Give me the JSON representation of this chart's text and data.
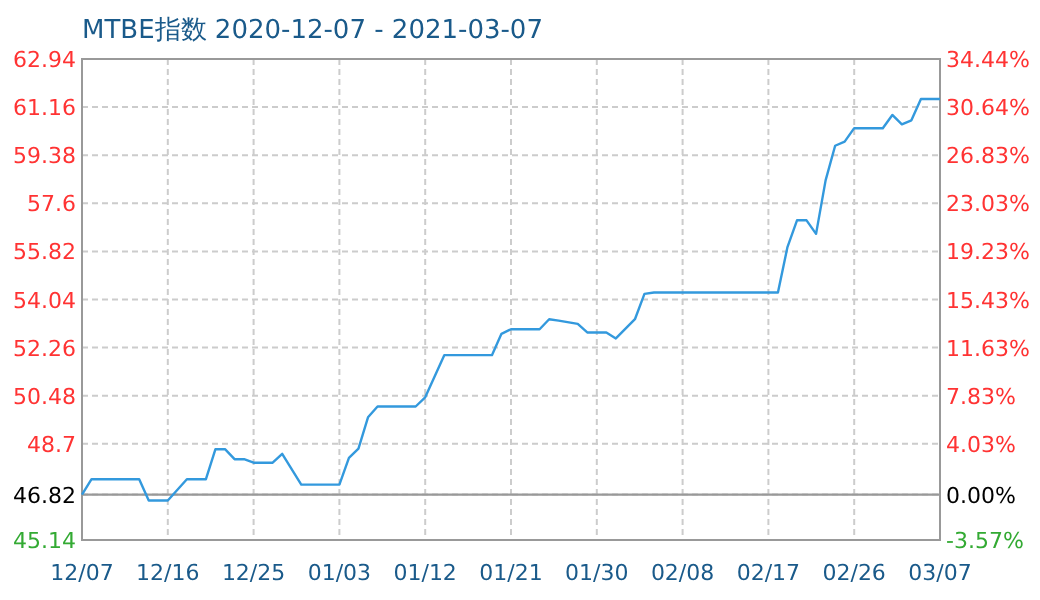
{
  "chart_data": {
    "type": "line",
    "title": "MTBE指数 2020-12-07 - 2021-03-07",
    "x": [
      "2020-12-07",
      "2020-12-08",
      "2020-12-13",
      "2020-12-14",
      "2020-12-16",
      "2020-12-18",
      "2020-12-20",
      "2020-12-21",
      "2020-12-22",
      "2020-12-23",
      "2020-12-24",
      "2020-12-25",
      "2020-12-27",
      "2020-12-28",
      "2020-12-30",
      "2021-01-03",
      "2021-01-04",
      "2021-01-05",
      "2021-01-06",
      "2021-01-07",
      "2021-01-11",
      "2021-01-12",
      "2021-01-14",
      "2021-01-19",
      "2021-01-20",
      "2021-01-21",
      "2021-01-24",
      "2021-01-25",
      "2021-01-26",
      "2021-01-28",
      "2021-01-29",
      "2021-01-31",
      "2021-02-01",
      "2021-02-03",
      "2021-02-04",
      "2021-02-05",
      "2021-02-18",
      "2021-02-19",
      "2021-02-20",
      "2021-02-21",
      "2021-02-22",
      "2021-02-23",
      "2021-02-24",
      "2021-02-25",
      "2021-02-26",
      "2021-03-01",
      "2021-03-02",
      "2021-03-03",
      "2021-03-04",
      "2021-03-05",
      "2021-03-07"
    ],
    "series": [
      {
        "color": "#3399dd",
        "values": [
          46.82,
          47.39,
          47.39,
          46.6,
          46.6,
          47.39,
          47.39,
          48.5,
          48.5,
          48.13,
          48.13,
          48.0,
          48.0,
          48.33,
          47.19,
          47.19,
          48.18,
          48.52,
          49.68,
          50.08,
          50.08,
          50.42,
          51.98,
          51.98,
          52.77,
          52.94,
          52.94,
          53.31,
          53.26,
          53.14,
          52.82,
          52.82,
          52.6,
          53.31,
          54.25,
          54.3,
          54.3,
          55.98,
          56.97,
          56.97,
          56.47,
          58.45,
          59.73,
          59.88,
          60.38,
          60.38,
          60.87,
          60.52,
          60.67,
          61.46,
          61.46
        ]
      }
    ],
    "xlim": [
      "2020-12-07",
      "2021-03-07"
    ],
    "xticks": [
      {
        "value": "2020-12-07",
        "label": "12/07"
      },
      {
        "value": "2020-12-16",
        "label": "12/16"
      },
      {
        "value": "2020-12-25",
        "label": "12/25"
      },
      {
        "value": "2021-01-03",
        "label": "01/03"
      },
      {
        "value": "2021-01-12",
        "label": "01/12"
      },
      {
        "value": "2021-01-21",
        "label": "01/21"
      },
      {
        "value": "2021-01-30",
        "label": "01/30"
      },
      {
        "value": "2021-02-08",
        "label": "02/08"
      },
      {
        "value": "2021-02-17",
        "label": "02/17"
      },
      {
        "value": "2021-02-26",
        "label": "02/26"
      },
      {
        "value": "2021-03-07",
        "label": "03/07"
      }
    ],
    "ylim": [
      45.14,
      62.94
    ],
    "yticks": [
      45.14,
      46.82,
      48.7,
      50.48,
      52.26,
      54.04,
      55.82,
      57.6,
      59.38,
      61.16,
      62.94
    ],
    "y2lim": [
      -3.57,
      34.44
    ],
    "y2ticks": [
      {
        "value": -3.57,
        "label": "-3.57%"
      },
      {
        "value": 0,
        "label": "0.00%"
      },
      {
        "value": 4.03,
        "label": "4.03%"
      },
      {
        "value": 7.83,
        "label": "7.83%"
      },
      {
        "value": 11.63,
        "label": "11.63%"
      },
      {
        "value": 15.43,
        "label": "15.43%"
      },
      {
        "value": 19.23,
        "label": "19.23%"
      },
      {
        "value": 23.03,
        "label": "23.03%"
      },
      {
        "value": 26.83,
        "label": "26.83%"
      },
      {
        "value": 30.64,
        "label": "30.64%"
      },
      {
        "value": 34.44,
        "label": "34.44%"
      }
    ],
    "grid": true,
    "ref_lines": [
      {
        "axis": "y",
        "value": 46.82,
        "color": "#999999",
        "line_style": "solid"
      }
    ]
  }
}
